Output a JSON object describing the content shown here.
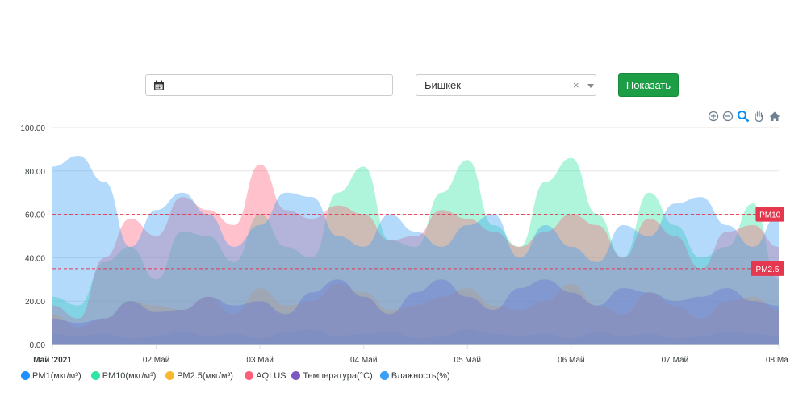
{
  "form": {
    "date_value": "",
    "city_value": "Бишкек",
    "clear_glyph": "×",
    "submit_label": "Показать"
  },
  "toolbar": {
    "icons": [
      "zoom-in-icon",
      "zoom-out-icon",
      "selection-zoom-icon",
      "pan-hand-icon",
      "home-reset-icon"
    ]
  },
  "chart_data": {
    "type": "area",
    "title": "",
    "xlabel": "",
    "ylabel": "",
    "ylim": [
      0,
      100
    ],
    "y_ticks": [
      "0.00",
      "20.00",
      "40.00",
      "60.00",
      "80.00",
      "100.00"
    ],
    "x_range": [
      "2021-05-01T00:00",
      "2021-05-08T00:00"
    ],
    "x_ticks": [
      {
        "t": "2021-05-01T00:00",
        "label": "Май '2021",
        "bold": true
      },
      {
        "t": "2021-05-02T00:00",
        "label": "02 Май"
      },
      {
        "t": "2021-05-03T00:00",
        "label": "03 Май"
      },
      {
        "t": "2021-05-04T00:00",
        "label": "04 Май"
      },
      {
        "t": "2021-05-05T00:00",
        "label": "05 Май"
      },
      {
        "t": "2021-05-06T00:00",
        "label": "06 Май"
      },
      {
        "t": "2021-05-07T00:00",
        "label": "07 Май"
      },
      {
        "t": "2021-05-08T00:00",
        "label": "08 Ma"
      }
    ],
    "grid": true,
    "legend_position": "bottom-left",
    "thresholds": [
      {
        "label": "PM10",
        "y": 60,
        "color": "#e5384f"
      },
      {
        "label": "PM2.5",
        "y": 35,
        "color": "#e5384f"
      }
    ],
    "x_hours": [
      0,
      6,
      12,
      18,
      24,
      30,
      36,
      42,
      48,
      54,
      60,
      66,
      72,
      78,
      84,
      90,
      96,
      102,
      108,
      114,
      120,
      126,
      132,
      138,
      144,
      150,
      156,
      162,
      168
    ],
    "series": [
      {
        "name": "PM1(мкг/м³)",
        "color": "#1e90ff",
        "values": [
          5,
          4,
          5,
          3,
          4,
          6,
          4,
          5,
          3,
          6,
          7,
          4,
          5,
          6,
          3,
          4,
          7,
          5,
          4,
          5,
          3,
          6,
          4,
          5,
          3,
          4,
          6,
          5,
          4
        ]
      },
      {
        "name": "PM10(мкг/м³)",
        "color": "#2ee6a1",
        "values": [
          22,
          18,
          38,
          45,
          30,
          52,
          50,
          38,
          60,
          45,
          40,
          70,
          82,
          48,
          45,
          70,
          85,
          55,
          45,
          75,
          86,
          60,
          40,
          70,
          55,
          40,
          45,
          65,
          30
        ]
      },
      {
        "name": "PM2.5(мкг/м³)",
        "color": "#f7b731",
        "values": [
          14,
          8,
          12,
          20,
          18,
          16,
          22,
          14,
          26,
          18,
          20,
          28,
          24,
          16,
          18,
          22,
          26,
          18,
          16,
          20,
          28,
          18,
          14,
          24,
          18,
          12,
          20,
          22,
          16
        ]
      },
      {
        "name": "AQI US",
        "color": "#ff5e78",
        "values": [
          18,
          12,
          40,
          58,
          50,
          68,
          62,
          55,
          83,
          62,
          58,
          64,
          60,
          48,
          50,
          62,
          58,
          52,
          45,
          52,
          60,
          55,
          40,
          58,
          50,
          35,
          52,
          55,
          45
        ]
      },
      {
        "name": "Температура(°C)",
        "color": "#7e57c2",
        "values": [
          12,
          10,
          12,
          20,
          15,
          16,
          22,
          18,
          20,
          14,
          24,
          30,
          22,
          14,
          24,
          30,
          22,
          16,
          26,
          30,
          24,
          18,
          26,
          24,
          20,
          22,
          26,
          20,
          18
        ]
      },
      {
        "name": "Влажность(%)",
        "color": "#3a9ff5",
        "values": [
          82,
          87,
          75,
          45,
          62,
          70,
          60,
          45,
          55,
          70,
          68,
          50,
          45,
          60,
          52,
          45,
          55,
          60,
          40,
          55,
          45,
          38,
          55,
          50,
          65,
          68,
          55,
          45,
          60
        ]
      }
    ]
  }
}
